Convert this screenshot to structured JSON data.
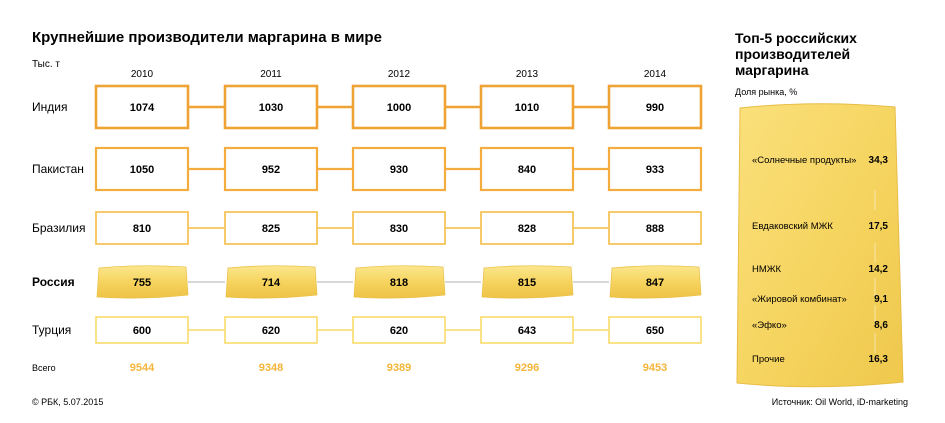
{
  "chart_data": [
    {
      "type": "table",
      "title": "Крупнейшие производители маргарина в мире",
      "unit": "Тыс. т",
      "years": [
        "2010",
        "2011",
        "2012",
        "2013",
        "2014"
      ],
      "series": [
        {
          "name": "Индия",
          "values": [
            1074,
            1030,
            1000,
            1010,
            990
          ]
        },
        {
          "name": "Пакистан",
          "values": [
            1050,
            952,
            930,
            840,
            933
          ]
        },
        {
          "name": "Бразилия",
          "values": [
            810,
            825,
            830,
            828,
            888
          ]
        },
        {
          "name": "Россия",
          "values": [
            755,
            714,
            818,
            815,
            847
          ]
        },
        {
          "name": "Турция",
          "values": [
            600,
            620,
            620,
            643,
            650
          ]
        }
      ],
      "highlight": "Россия",
      "totals_label": "Всего",
      "totals": [
        9544,
        9348,
        9389,
        9296,
        9453
      ]
    },
    {
      "type": "bar",
      "title": "Топ-5 российских производителей маргарина",
      "unit": "Доля рынка, %",
      "categories": [
        "«Солнечные продукты»",
        "Евдаковский МЖК",
        "НМЖК",
        "«Жировой комбинат»",
        "«Эфко»",
        "Прочие"
      ],
      "values": [
        "34,3",
        "17,5",
        "14,2",
        "9,1",
        "8,6",
        "16,3"
      ]
    }
  ],
  "footer": {
    "copyright": "© РБК, 5.07.2015",
    "source": "Источник: Oil World, iD-marketing"
  },
  "colors": {
    "dark_orange": "#f0a335",
    "light_yellow": "#f8da6a",
    "butter": "#f5d35c",
    "connector": "#cccccc"
  }
}
